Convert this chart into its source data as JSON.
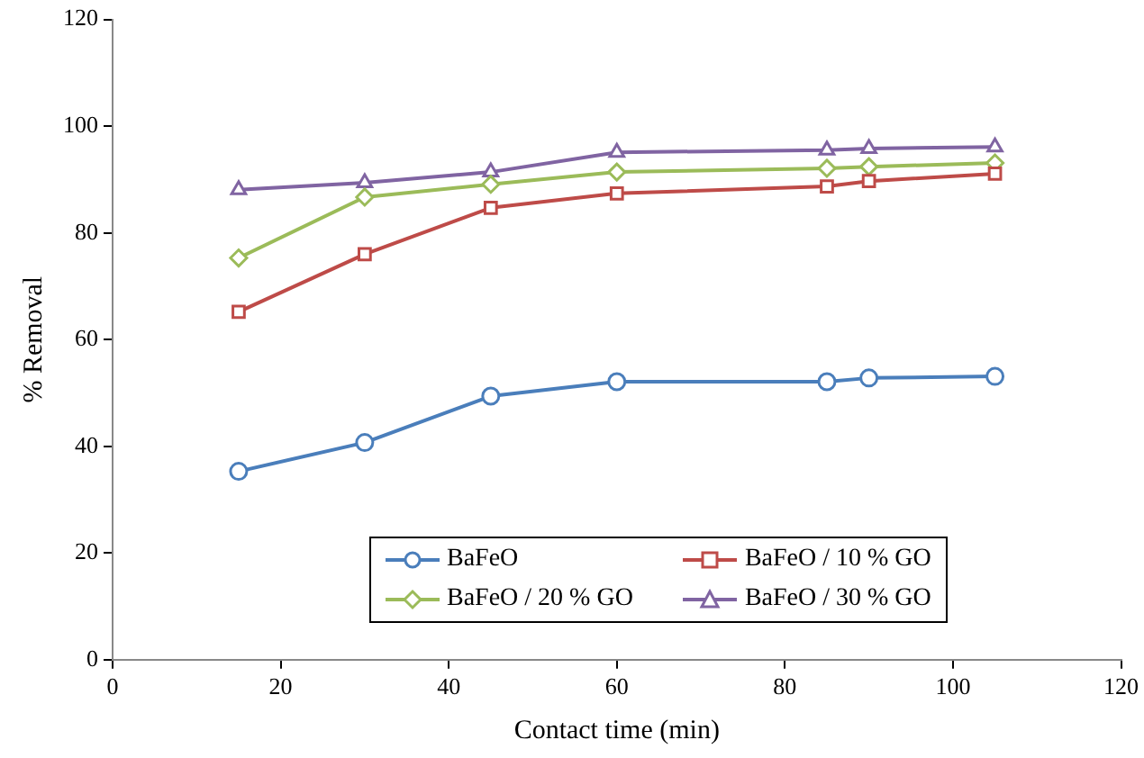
{
  "chart_data": {
    "type": "line",
    "xlabel": "Contact time (min)",
    "ylabel": "% Removal",
    "xlim": [
      0,
      120
    ],
    "xticks": [
      0,
      20,
      40,
      60,
      80,
      100,
      120
    ],
    "ylim": [
      0,
      120
    ],
    "yticks": [
      0,
      20,
      40,
      60,
      80,
      100,
      120
    ],
    "grid": false,
    "legend": "bottom",
    "line_style": "solid",
    "x": [
      15,
      30,
      45,
      60,
      85,
      90,
      105
    ],
    "series": [
      {
        "name": "BaFeO",
        "color": "#4a7ebb",
        "marker": "circle",
        "values": [
          35.3,
          40.7,
          49.4,
          52.1,
          52.1,
          52.8,
          53.1
        ]
      },
      {
        "name": "BaFeO / 10 % GO",
        "color": "#be4b48",
        "marker": "square",
        "values": [
          65.2,
          76,
          84.7,
          87.4,
          88.7,
          89.7,
          91.1
        ]
      },
      {
        "name": "BaFeO / 20 % GO",
        "color": "#9bbb59",
        "marker": "diamond",
        "values": [
          75.3,
          86.7,
          89.1,
          91.4,
          92.1,
          92.4,
          93.1
        ]
      },
      {
        "name": "BaFeO / 30 % GO",
        "color": "#8064a2",
        "marker": "triangle",
        "values": [
          88.1,
          89.4,
          91.4,
          95.1,
          95.5,
          95.8,
          96.1
        ]
      }
    ]
  }
}
